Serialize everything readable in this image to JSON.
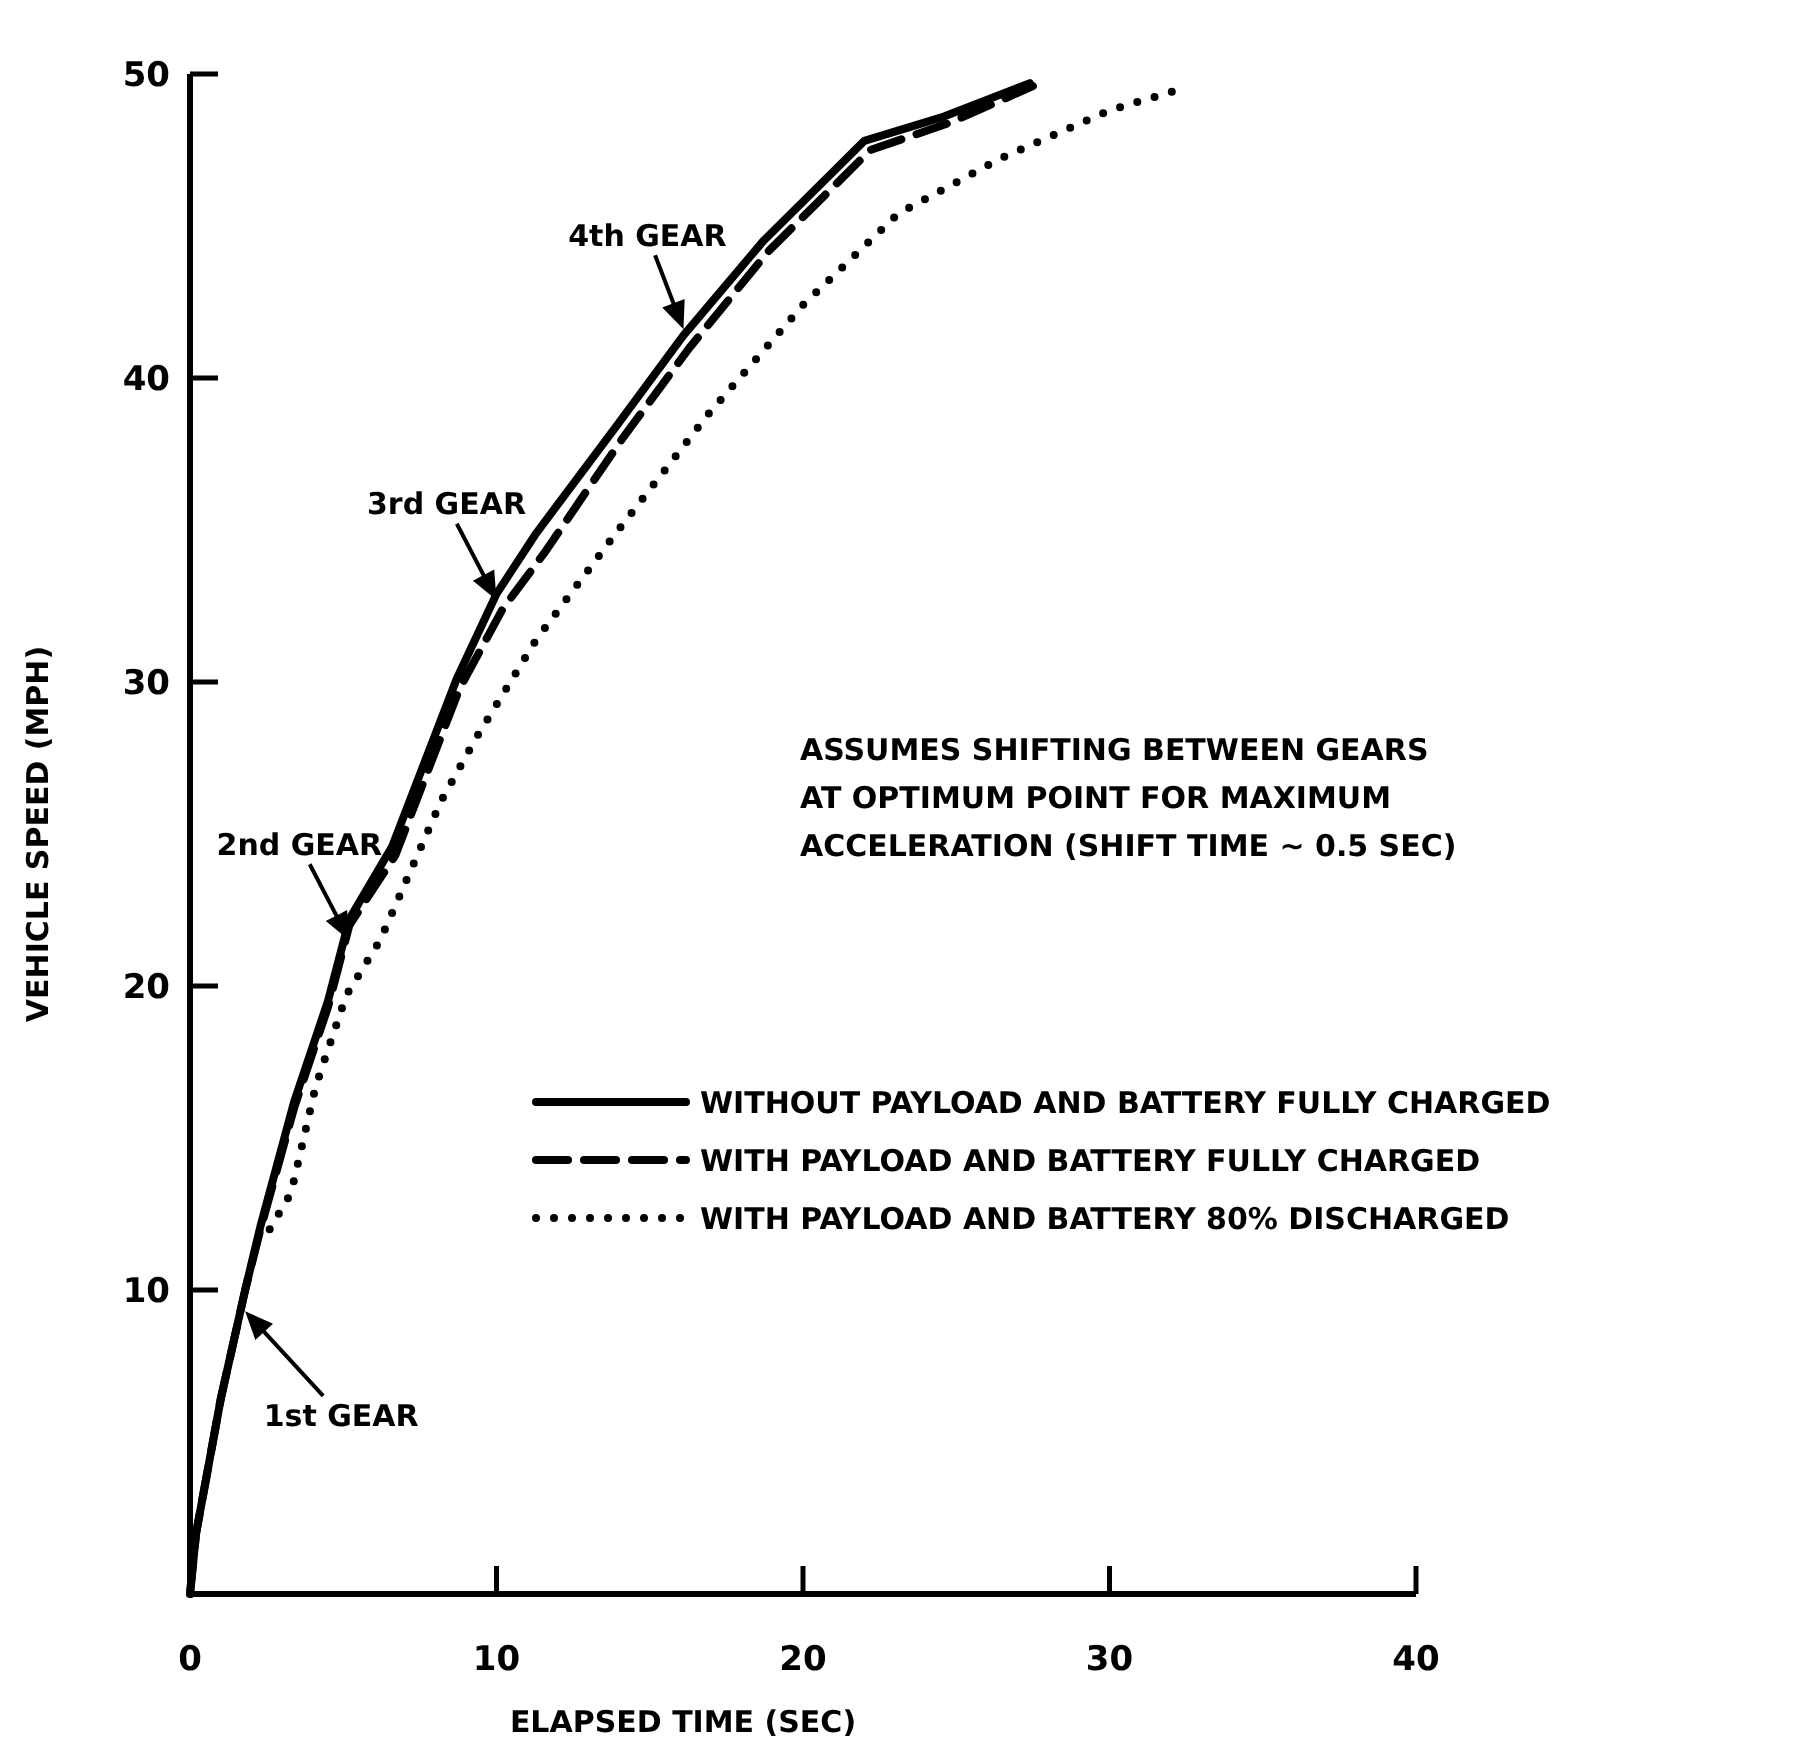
{
  "chart_data": {
    "type": "line",
    "xlabel": "ELAPSED TIME (SEC)",
    "ylabel": "VEHICLE SPEED (MPH)",
    "xlim": [
      0,
      40
    ],
    "ylim": [
      0,
      50
    ],
    "xticks": [
      0,
      10,
      20,
      30,
      40
    ],
    "yticks": [
      10,
      20,
      30,
      40,
      50
    ],
    "grid": false,
    "legend": "right",
    "marker": "none",
    "series": [
      {
        "name": "WITHOUT PAYLOAD AND BATTERY FULLY CHARGED",
        "color": "#000000",
        "line_style": "solid",
        "x": [
          0,
          0.2,
          1.0,
          1.8,
          2.3,
          3.4,
          4.5,
          5.2,
          6.6,
          8.7,
          10,
          11.3,
          13.9,
          16.1,
          18.7,
          22,
          24.6,
          27.4
        ],
        "values": [
          0,
          2,
          6.4,
          10,
          12.1,
          16.2,
          19.5,
          22.2,
          24.6,
          30.1,
          32.9,
          34.9,
          38.4,
          41.4,
          44.5,
          47.8,
          48.6,
          49.7
        ]
      },
      {
        "name": "WITH PAYLOAD AND BATTERY FULLY CHARGED",
        "color": "#000000",
        "line_style": "dashed",
        "x": [
          0,
          0.2,
          1.0,
          1.8,
          2.3,
          3.4,
          4.5,
          5.2,
          6.7,
          8.8,
          10.2,
          11.6,
          14.1,
          16.3,
          18.9,
          22.2,
          24.8,
          27.5
        ],
        "values": [
          0,
          2,
          6.4,
          10,
          12.0,
          16.0,
          19.3,
          22.0,
          24.3,
          29.8,
          32.4,
          34.3,
          38.0,
          41.0,
          44.2,
          47.5,
          48.4,
          49.6
        ]
      },
      {
        "name": "WITH PAYLOAD AND BATTERY 80% DISCHARGED",
        "color": "#000000",
        "line_style": "dotted",
        "x": [
          2.6,
          3.3,
          4.1,
          5.1,
          6.2,
          8.2,
          9.3,
          11.3,
          13.9,
          16.9,
          20,
          23.1,
          26.4,
          30,
          32.3
        ],
        "values": [
          12,
          13.2,
          16.7,
          19.7,
          21.5,
          26.1,
          28.1,
          31.4,
          34.9,
          38.8,
          42.4,
          45.4,
          47.2,
          48.8,
          49.5
        ]
      }
    ],
    "annotations": [
      {
        "text": "1st GEAR",
        "x": 1.8,
        "y": 9.3
      },
      {
        "text": "2nd GEAR",
        "x": 5.2,
        "y": 21.5
      },
      {
        "text": "3rd GEAR",
        "x": 10,
        "y": 32.7
      },
      {
        "text": "4th GEAR",
        "x": 16.1,
        "y": 41.6
      },
      "ASSUMES SHIFTING BETWEEN GEARS\nAT OPTIMUM POINT FOR MAXIMUM\nACCELERATION (SHIFT TIME ~ 0.5 SEC)"
    ]
  }
}
